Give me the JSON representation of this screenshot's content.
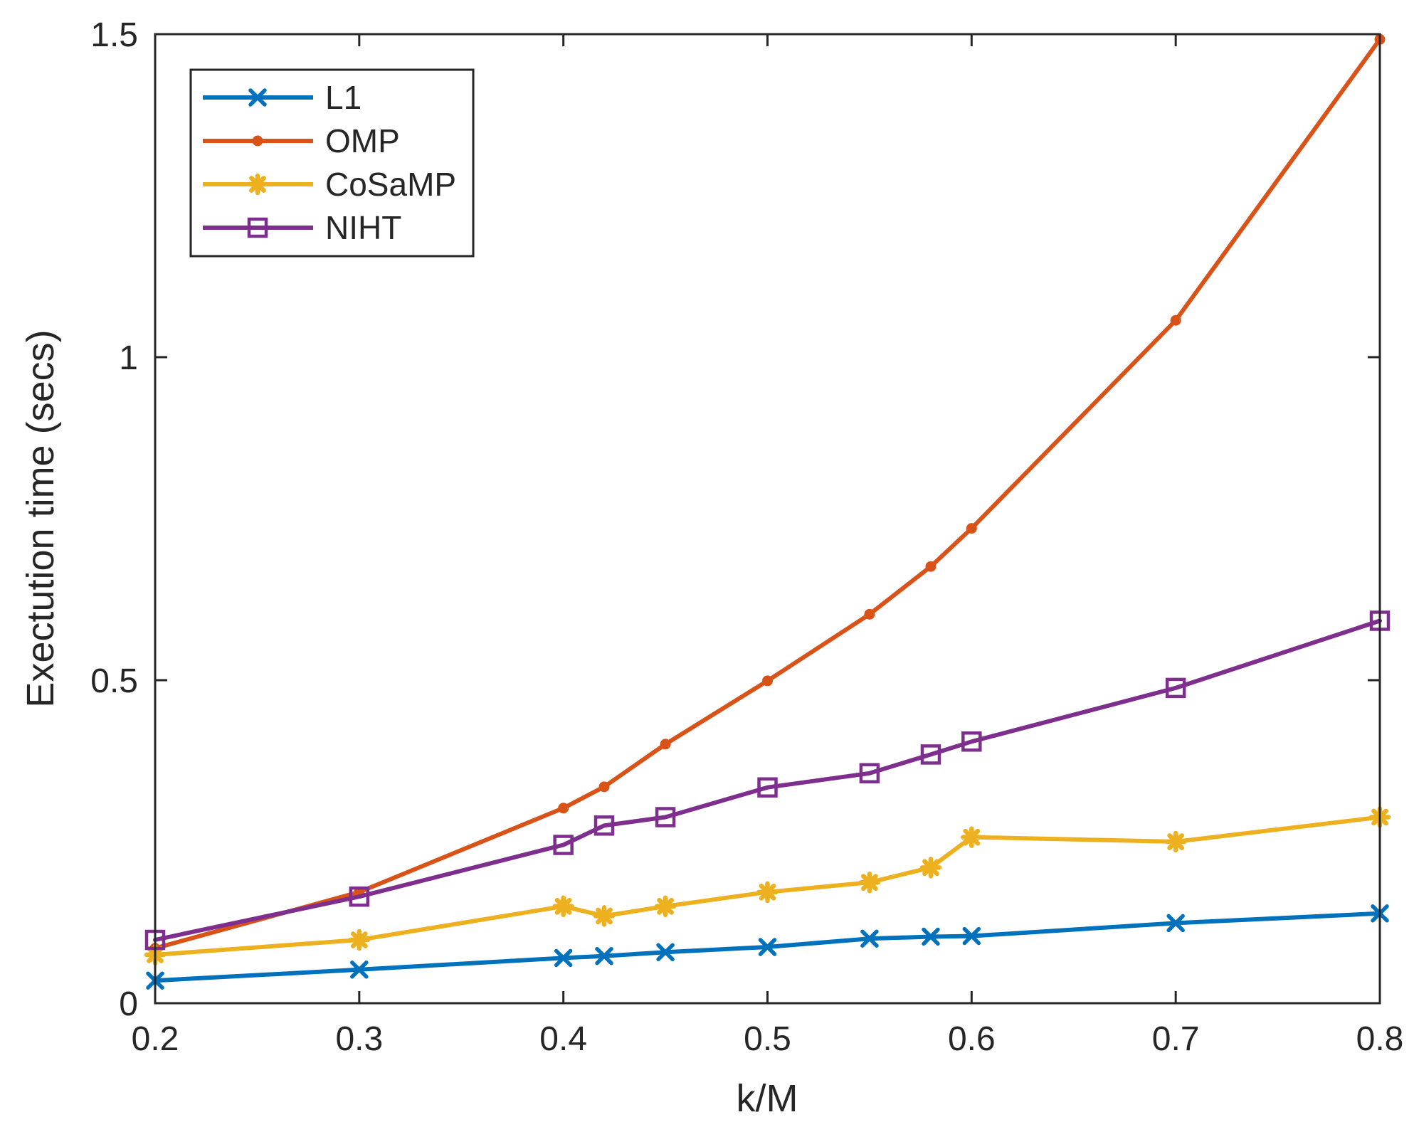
{
  "chart_data": {
    "type": "line",
    "title": "",
    "xlabel": "k/M",
    "ylabel": "Exectution time (secs)",
    "xlim": [
      0.2,
      0.8
    ],
    "ylim": [
      0,
      1.5
    ],
    "xticks": [
      0.2,
      0.3,
      0.4,
      0.5,
      0.6,
      0.7,
      0.8
    ],
    "xtick_labels": [
      "0.2",
      "0.3",
      "0.4",
      "0.5",
      "0.6",
      "0.7",
      "0.8"
    ],
    "yticks": [
      0,
      0.5,
      1,
      1.5
    ],
    "ytick_labels": [
      "0",
      "0.5",
      "1",
      "1.5"
    ],
    "grid": false,
    "legend_position": "top-left",
    "x": [
      0.2,
      0.3,
      0.4,
      0.42,
      0.45,
      0.5,
      0.55,
      0.58,
      0.6,
      0.7,
      0.8
    ],
    "series": [
      {
        "name": "L1",
        "color": "#0072BD",
        "marker": "x",
        "values": [
          0.035,
          0.052,
          0.07,
          0.073,
          0.079,
          0.087,
          0.1,
          0.103,
          0.104,
          0.124,
          0.139
        ]
      },
      {
        "name": "OMP",
        "color": "#D95319",
        "marker": "dot",
        "values": [
          0.085,
          0.172,
          0.302,
          0.335,
          0.401,
          0.499,
          0.602,
          0.676,
          0.735,
          1.057,
          1.492
        ]
      },
      {
        "name": "CoSaMP",
        "color": "#EDB120",
        "marker": "star",
        "values": [
          0.075,
          0.098,
          0.15,
          0.135,
          0.15,
          0.172,
          0.187,
          0.21,
          0.257,
          0.25,
          0.288
        ]
      },
      {
        "name": "NIHT",
        "color": "#7E2F8E",
        "marker": "square",
        "values": [
          0.098,
          0.165,
          0.245,
          0.275,
          0.288,
          0.334,
          0.356,
          0.385,
          0.405,
          0.488,
          0.592
        ]
      }
    ]
  }
}
